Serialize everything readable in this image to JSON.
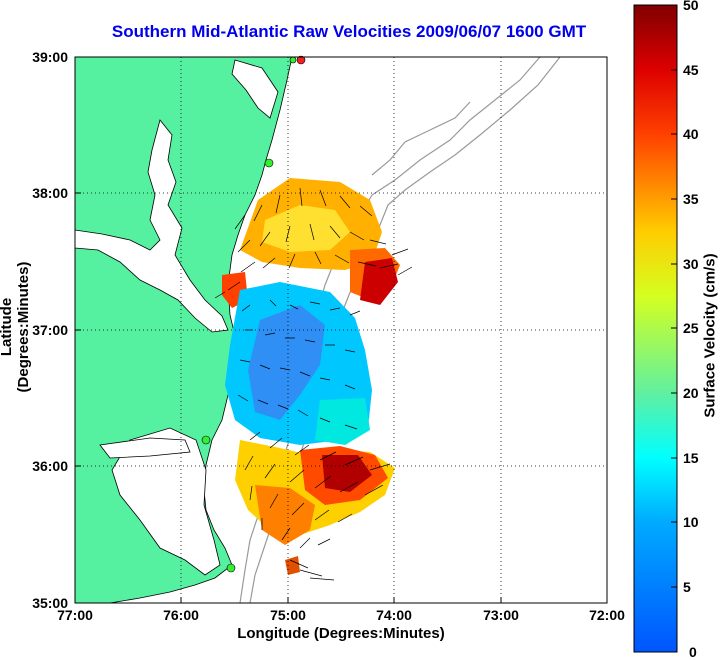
{
  "title": "Southern Mid-Atlantic Raw Velocities 2009/06/07 1600 GMT",
  "axes": {
    "xlabel": "Longitude (Degrees:Minutes)",
    "ylabel": "Latitude (Degrees:Minutes)",
    "x_ticks": [
      "77:00",
      "76:00",
      "75:00",
      "74:00",
      "73:00",
      "72:00"
    ],
    "y_ticks": [
      "39:00",
      "38:00",
      "37:00",
      "36:00",
      "35:00"
    ]
  },
  "colorbar": {
    "label": "Surface Velocity (cm/s)",
    "ticks": [
      "50",
      "45",
      "40",
      "35",
      "30",
      "25",
      "20",
      "15",
      "10",
      "5",
      "0"
    ],
    "range": [
      0,
      50
    ]
  },
  "colors": {
    "land": "#55f0a0",
    "title": "#0000ee",
    "grid": "#000000",
    "bathymetry": "#9a9a9a"
  }
}
